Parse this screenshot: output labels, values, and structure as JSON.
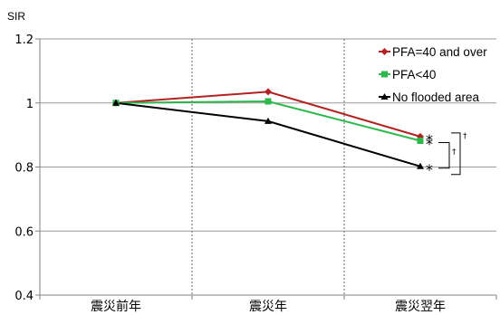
{
  "chart_data": {
    "type": "line",
    "title": "",
    "xlabel": "",
    "ylabel": "SIR",
    "ylim": [
      0.4,
      1.2
    ],
    "yticks": [
      "0.4",
      "0.6",
      "0.8",
      "1",
      "1.2"
    ],
    "categories": [
      "震災前年",
      "震災年",
      "震災翌年"
    ],
    "grid": "horizontal",
    "legend_position": "top-right",
    "series": [
      {
        "name": "PFA=40 and over",
        "values": [
          1.0,
          1.035,
          0.895
        ],
        "color": "#b22222",
        "marker": "diamond"
      },
      {
        "name": "PFA<40",
        "values": [
          1.0,
          1.005,
          0.882
        ],
        "color": "#2eb84c",
        "marker": "square"
      },
      {
        "name": "No flooded area",
        "values": [
          1.0,
          0.943,
          0.802
        ],
        "color": "#000000",
        "marker": "triangle"
      }
    ],
    "annotations": {
      "significance_marks": [
        "*",
        "*",
        "*"
      ],
      "bracket_marks": [
        "†",
        "†"
      ]
    }
  }
}
